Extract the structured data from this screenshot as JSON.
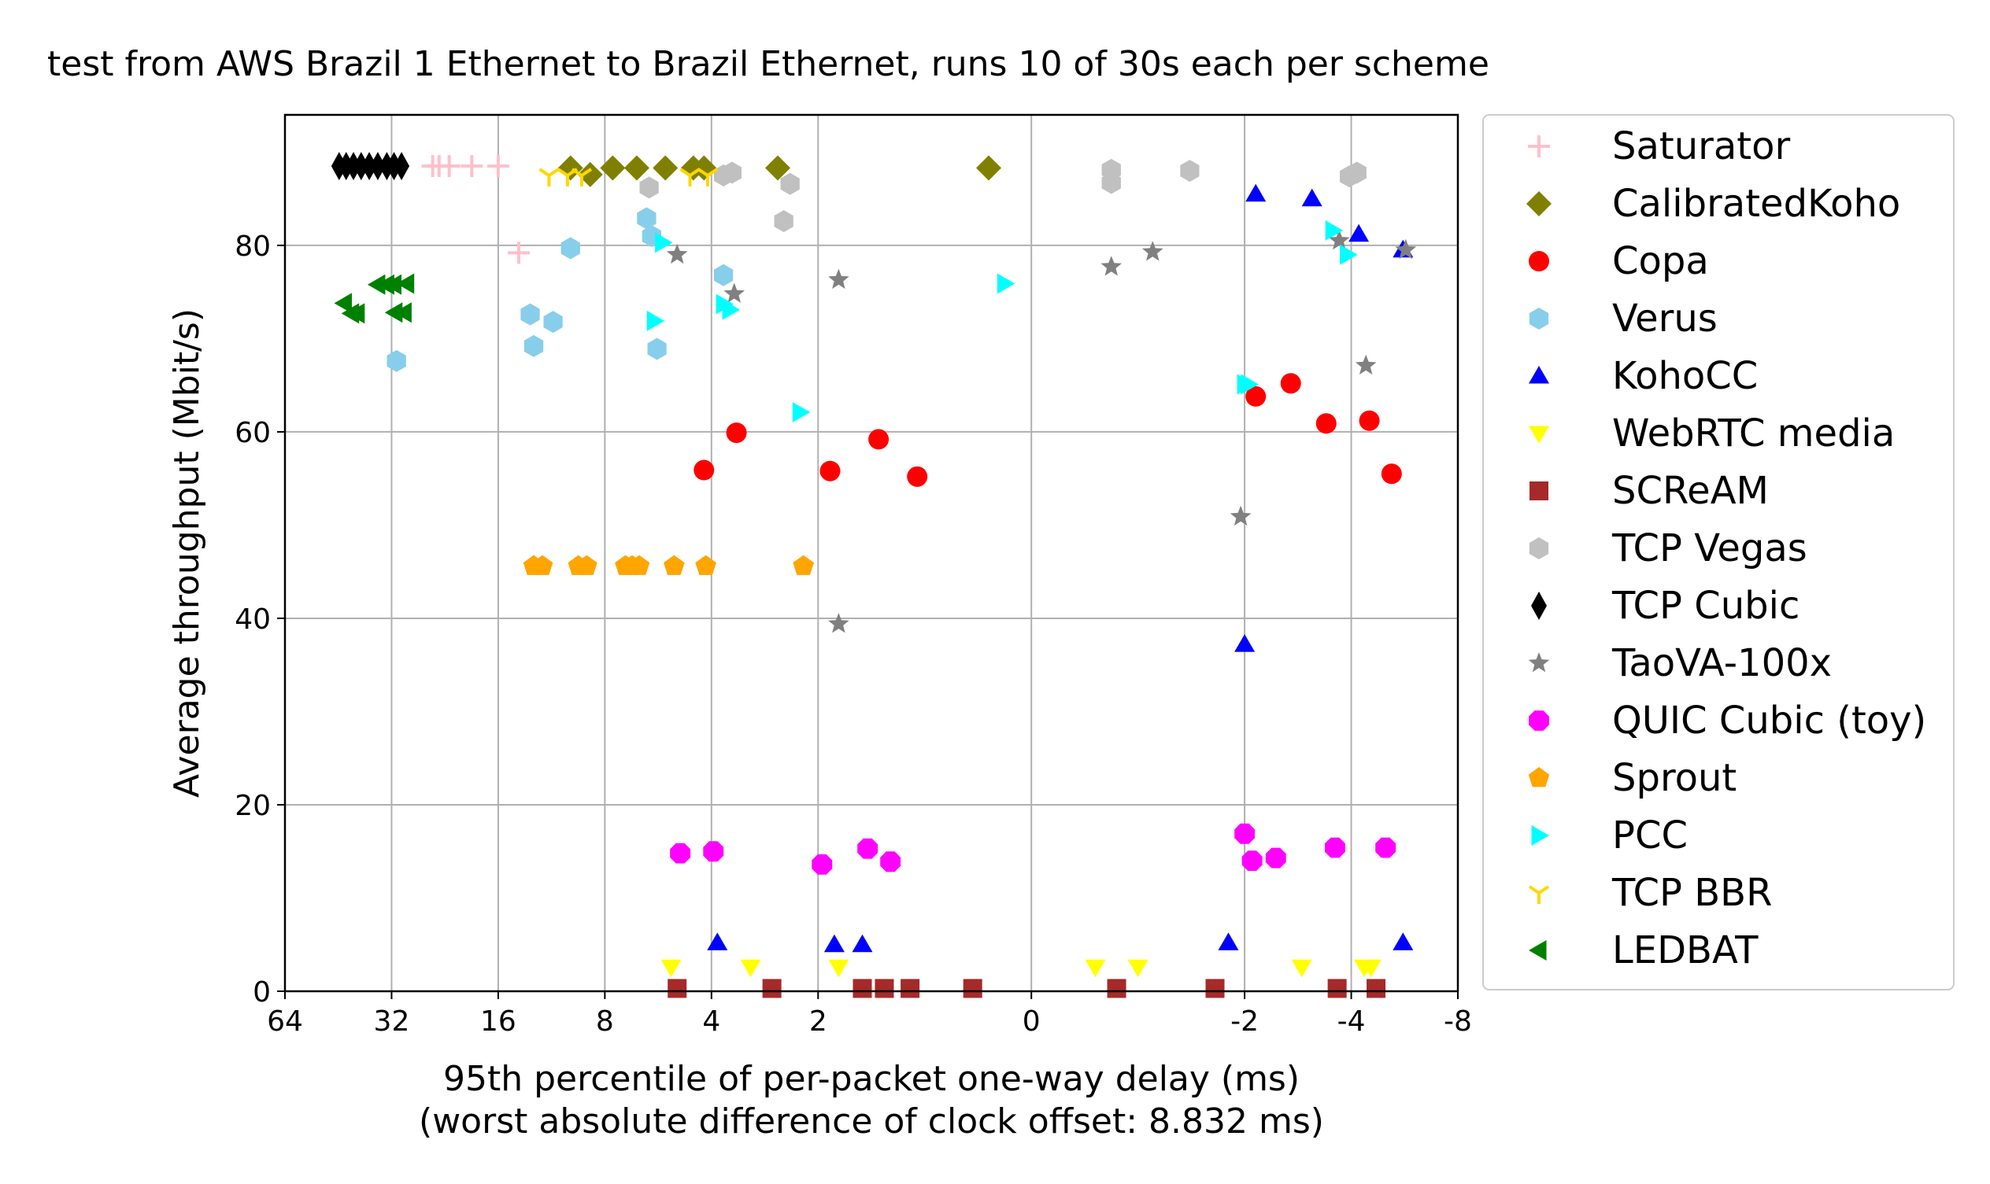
{
  "chart_data": {
    "type": "scatter",
    "title": "test from AWS Brazil 1 Ethernet to Brazil Ethernet, runs 10 of 30s each per scheme",
    "xlabel": "95th percentile of per-packet one-way delay (ms)",
    "xlabel_sub": "(worst absolute difference of clock offset: 8.832 ms)",
    "ylabel": "Average throughput (Mbit/s)",
    "x_scale": "symlog-inverted",
    "x_ticks": [
      64,
      32,
      16,
      8,
      4,
      2,
      0,
      -2,
      -4,
      -8
    ],
    "x_tick_labels": [
      "64",
      "32",
      "16",
      "8",
      "4",
      "2",
      "0",
      "-2",
      "-4",
      "-8"
    ],
    "y_ticks": [
      0,
      20,
      40,
      60,
      80
    ],
    "y_tick_labels": [
      "0",
      "20",
      "40",
      "60",
      "80"
    ],
    "ylim": [
      0,
      94
    ],
    "grid": true,
    "legend_position": "outside-right",
    "series": [
      {
        "name": "Saturator",
        "marker": "plus",
        "color": "#ffc0cb",
        "points": [
          [
            24.5,
            88.5
          ],
          [
            23.5,
            88.5
          ],
          [
            22,
            88.5
          ],
          [
            19,
            88.5
          ],
          [
            16,
            88.5
          ],
          [
            14,
            79.2
          ]
        ]
      },
      {
        "name": "CalibratedKoho",
        "marker": "diamond",
        "color": "#808000",
        "points": [
          [
            10,
            88.3
          ],
          [
            8.8,
            87.6
          ],
          [
            7.6,
            88.3
          ],
          [
            6.5,
            88.3
          ],
          [
            5.4,
            88.3
          ],
          [
            4.5,
            88.3
          ],
          [
            4.2,
            88.3
          ],
          [
            2.6,
            88.3
          ],
          [
            0.4,
            88.3
          ]
        ]
      },
      {
        "name": "Copa",
        "marker": "circle",
        "color": "#ff0000",
        "points": [
          [
            4.2,
            55.9
          ],
          [
            3.4,
            59.9
          ],
          [
            1.85,
            55.8
          ],
          [
            1.35,
            59.2
          ],
          [
            1.05,
            55.2
          ],
          [
            -2.15,
            63.8
          ],
          [
            -2.7,
            65.2
          ],
          [
            -3.4,
            60.9
          ],
          [
            -4.5,
            61.2
          ],
          [
            -5.2,
            55.5
          ]
        ]
      },
      {
        "name": "Verus",
        "marker": "hexagon",
        "color": "#87ceeb",
        "points": [
          [
            13,
            72.6
          ],
          [
            12.7,
            69.2
          ],
          [
            11.2,
            71.8
          ],
          [
            10,
            79.7
          ],
          [
            6.1,
            82.9
          ],
          [
            5.9,
            81
          ],
          [
            5.7,
            68.9
          ],
          [
            3.7,
            76.8
          ],
          [
            31,
            67.6
          ]
        ]
      },
      {
        "name": "KohoCC",
        "marker": "triangle-up",
        "color": "#0000ff",
        "points": [
          [
            -2.15,
            85.5
          ],
          [
            -3.1,
            85
          ],
          [
            -4.2,
            81.2
          ],
          [
            -5.6,
            79.5
          ],
          [
            -2,
            37.2
          ],
          [
            3.85,
            5.2
          ],
          [
            1.8,
            5
          ],
          [
            1.5,
            5
          ],
          [
            -1.8,
            5.2
          ],
          [
            -5.6,
            5.2
          ]
        ]
      },
      {
        "name": "WebRTC media",
        "marker": "triangle-down",
        "color": "#ffff00",
        "points": [
          [
            5.2,
            2.6
          ],
          [
            3.1,
            2.6
          ],
          [
            1.75,
            2.6
          ],
          [
            -0.6,
            2.6
          ],
          [
            -1,
            2.6
          ],
          [
            -2.9,
            2.6
          ],
          [
            -4.35,
            2.6
          ],
          [
            -4.55,
            2.6
          ]
        ]
      },
      {
        "name": "SCReAM",
        "marker": "square",
        "color": "#a52a2a",
        "points": [
          [
            5.0,
            0.3
          ],
          [
            2.7,
            0.3
          ],
          [
            1.5,
            0.3
          ],
          [
            1.3,
            0.3
          ],
          [
            1.1,
            0.3
          ],
          [
            0.55,
            0.3
          ],
          [
            -0.8,
            0.3
          ],
          [
            -1.65,
            0.3
          ],
          [
            -3.65,
            0.3
          ],
          [
            -4.7,
            0.3
          ]
        ]
      },
      {
        "name": "TCP Vegas",
        "marker": "hexagon",
        "color": "#c0c0c0",
        "points": [
          [
            6.0,
            86.2
          ],
          [
            3.7,
            87.5
          ],
          [
            3.5,
            87.8
          ],
          [
            2.4,
            86.6
          ],
          [
            2.5,
            82.6
          ],
          [
            -0.75,
            88.1
          ],
          [
            -0.75,
            86.7
          ],
          [
            -1.4,
            88
          ],
          [
            -3.95,
            87.4
          ],
          [
            -4.15,
            87.8
          ]
        ]
      },
      {
        "name": "TCP Cubic",
        "marker": "diamond-thin",
        "color": "#000000",
        "points": [
          [
            45,
            88.5
          ],
          [
            43,
            88.5
          ],
          [
            41,
            88.5
          ],
          [
            39,
            88.5
          ],
          [
            37,
            88.5
          ],
          [
            35,
            88.5
          ],
          [
            33,
            88.5
          ],
          [
            31.5,
            88.5
          ],
          [
            30,
            88.5
          ]
        ]
      },
      {
        "name": "TaoVA-100x",
        "marker": "star",
        "color": "#808080",
        "points": [
          [
            5.0,
            79
          ],
          [
            3.45,
            74.8
          ],
          [
            1.75,
            76.3
          ],
          [
            1.75,
            39.4
          ],
          [
            -0.75,
            77.7
          ],
          [
            -1.1,
            79.3
          ],
          [
            -1.95,
            50.9
          ],
          [
            -3.7,
            80.5
          ],
          [
            -4.4,
            67.1
          ],
          [
            -5.7,
            79.5
          ]
        ]
      },
      {
        "name": "QUIC Cubic (toy)",
        "marker": "octagon",
        "color": "#ff00ff",
        "points": [
          [
            4.9,
            14.8
          ],
          [
            3.95,
            15
          ],
          [
            1.95,
            13.6
          ],
          [
            1.45,
            15.3
          ],
          [
            1.25,
            13.9
          ],
          [
            -2.0,
            16.9
          ],
          [
            -2.1,
            14
          ],
          [
            -2.45,
            14.3
          ],
          [
            -3.6,
            15.4
          ],
          [
            -5.0,
            15.4
          ]
        ]
      },
      {
        "name": "Sprout",
        "marker": "pentagon",
        "color": "#ffa500",
        "points": [
          [
            12.7,
            45.6
          ],
          [
            12,
            45.6
          ],
          [
            9.5,
            45.6
          ],
          [
            9,
            45.6
          ],
          [
            7,
            45.6
          ],
          [
            6.7,
            45.6
          ],
          [
            6.4,
            45.6
          ],
          [
            5.1,
            45.6
          ],
          [
            4.15,
            45.6
          ],
          [
            2.2,
            45.6
          ]
        ]
      },
      {
        "name": "PCC",
        "marker": "triangle-right",
        "color": "#00ffff",
        "points": [
          [
            5.5,
            80.3
          ],
          [
            5.8,
            71.9
          ],
          [
            3.55,
            73.1
          ],
          [
            3.7,
            73.7
          ],
          [
            2.25,
            62.1
          ],
          [
            0.25,
            75.9
          ],
          [
            -2.05,
            65.1
          ],
          [
            -3.55,
            81.6
          ],
          [
            -3.9,
            79
          ],
          [
            -2,
            65.1
          ]
        ]
      },
      {
        "name": "TCP BBR",
        "marker": "tri-down",
        "color": "#ffd700",
        "points": [
          [
            11.5,
            87.5
          ],
          [
            10.2,
            87.5
          ],
          [
            9.3,
            87.5
          ],
          [
            4.6,
            87.5
          ],
          [
            4.1,
            87.5
          ]
        ]
      },
      {
        "name": "LEDBAT",
        "marker": "triangle-left",
        "color": "#008000",
        "points": [
          [
            43.5,
            73.8
          ],
          [
            41.5,
            72.7
          ],
          [
            40,
            72.7
          ],
          [
            35,
            75.8
          ],
          [
            33,
            75.8
          ],
          [
            31.5,
            75.8
          ],
          [
            29,
            75.9
          ],
          [
            31.3,
            72.8
          ],
          [
            29.5,
            72.8
          ]
        ]
      }
    ]
  }
}
